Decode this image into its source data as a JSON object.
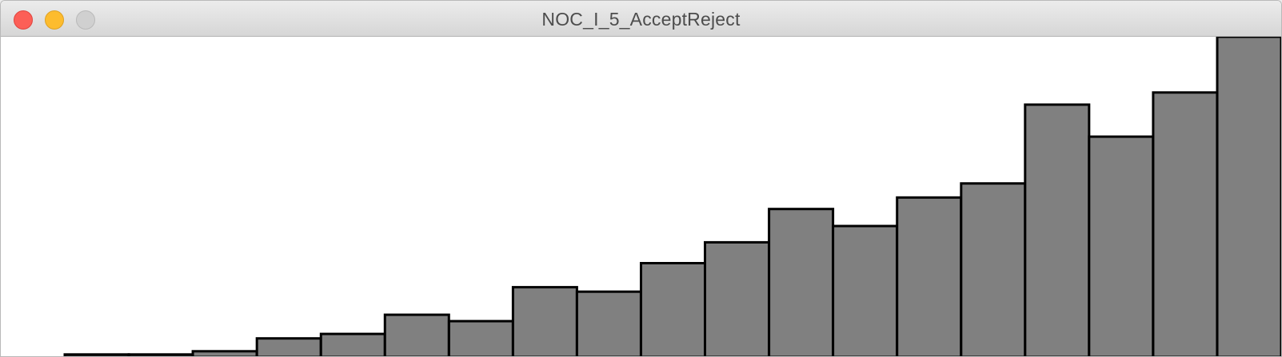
{
  "window": {
    "title": "NOC_I_5_AcceptReject",
    "controls": {
      "close": "close-icon",
      "minimize": "minimize-icon",
      "zoom": "zoom-icon"
    }
  },
  "chart_data": {
    "type": "bar",
    "ylim": [
      0,
      1
    ],
    "bar_fill": "#808080",
    "bar_stroke": "#000000",
    "values": [
      0.0,
      0.008,
      0.008,
      0.018,
      0.058,
      0.072,
      0.132,
      0.112,
      0.218,
      0.204,
      0.293,
      0.358,
      0.462,
      0.409,
      0.498,
      0.542,
      0.788,
      0.688,
      0.826,
      1.0
    ]
  }
}
